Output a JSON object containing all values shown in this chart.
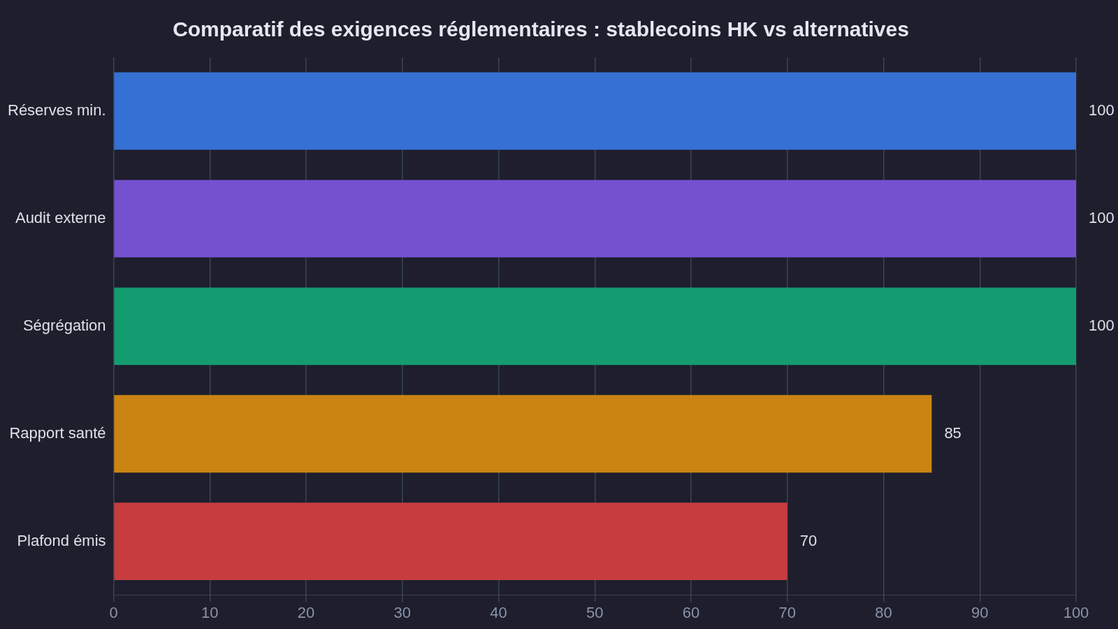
{
  "chart_data": {
    "type": "bar",
    "orientation": "horizontal",
    "title": "Comparatif des exigences réglementaires : stablecoins HK vs alternatives",
    "categories": [
      "Réserves min.",
      "Audit externe",
      "Ségrégation",
      "Rapport santé",
      "Plafond émis"
    ],
    "values": [
      100,
      100,
      100,
      85,
      70
    ],
    "colors": [
      "#3570d4",
      "#7551cf",
      "#139c6f",
      "#cb8412",
      "#c63c3f"
    ],
    "xlim": [
      0,
      100
    ],
    "xticks": [
      0,
      10,
      20,
      30,
      40,
      50,
      60,
      70,
      80,
      90,
      100
    ],
    "grid": "x",
    "data_labels": true,
    "legend": false
  }
}
